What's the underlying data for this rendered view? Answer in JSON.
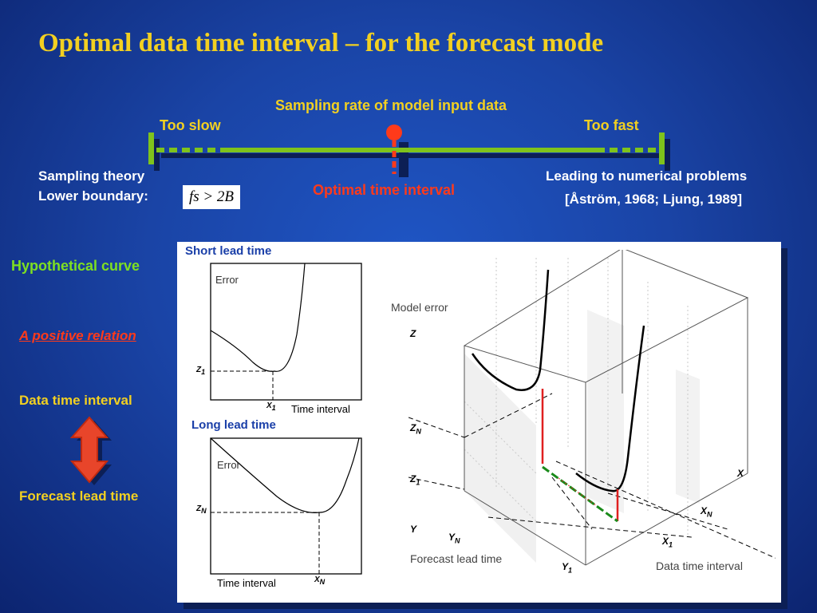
{
  "title": "Optimal data time interval – for the forecast mode",
  "sampling": {
    "header": "Sampling rate of model input data",
    "too_slow": "Too slow",
    "too_fast": "Too fast",
    "theory_line1": "Sampling theory",
    "theory_line2": "Lower boundary:",
    "formula": "fs > 2B",
    "optimal": "Optimal time interval",
    "numerical_line1": "Leading to numerical problems",
    "numerical_line2": "[Åström, 1968; Ljung, 1989]"
  },
  "left": {
    "hypothetical": "Hypothetical curve",
    "positive": "A positive relation",
    "data_interval": "Data time interval",
    "lead_time": "Forecast lead time"
  },
  "panel": {
    "short_title": "Short lead time",
    "long_title": "Long lead time",
    "error": "Error",
    "time_interval": "Time interval",
    "z1": "Z",
    "z1_sub": "1",
    "x1": "X",
    "x1_sub": "1",
    "zn": "Z",
    "zn_sub": "N",
    "xn": "X",
    "xn_sub": "N",
    "model_error": "Model error",
    "z_axis": "Z",
    "zn_3d": "Z",
    "zn_3d_sub": "N",
    "z1_3d": "Z",
    "z1_3d_sub": "1",
    "y_axis": "Y",
    "yn_3d": "Y",
    "yn_3d_sub": "N",
    "y1_3d": "Y",
    "y1_3d_sub": "1",
    "x_axis": "X",
    "xn_3d": "X",
    "xn_3d_sub": "N",
    "x1_3d": "X",
    "x1_3d_sub": "1",
    "forecast_lead_time": "Forecast lead time",
    "data_time_interval": "Data time interval"
  },
  "colors": {
    "title": "#f2d021",
    "bar": "#7fc31c",
    "optimal": "#ff3a1a",
    "hypothetical": "#7ee021"
  }
}
